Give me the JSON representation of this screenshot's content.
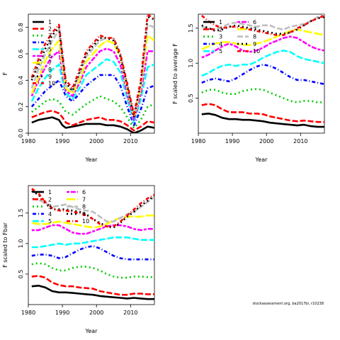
{
  "chart_data": [
    {
      "type": "line",
      "xlabel": "Year",
      "ylabel": "F",
      "xlim": [
        1980,
        2017
      ],
      "ylim": [
        0,
        0.9
      ],
      "xticks": [
        "1980",
        "1990",
        "2000",
        "2010"
      ],
      "yticks": [
        "0.0",
        "0.2",
        "0.4",
        "0.6",
        "0.8"
      ],
      "legend_position": "top-left",
      "x": [
        1981,
        1983,
        1985,
        1987,
        1989,
        1990,
        1991,
        1993,
        1995,
        1997,
        1999,
        2001,
        2003,
        2005,
        2007,
        2009,
        2011,
        2013,
        2015,
        2017
      ],
      "series": [
        {
          "name": "1",
          "color": "#000000",
          "values": [
            0.08,
            0.1,
            0.11,
            0.12,
            0.1,
            0.06,
            0.04,
            0.05,
            0.06,
            0.07,
            0.07,
            0.07,
            0.06,
            0.06,
            0.05,
            0.03,
            0.0,
            0.02,
            0.05,
            0.04
          ]
        },
        {
          "name": "2",
          "color": "#ff0000",
          "values": [
            0.12,
            0.14,
            0.16,
            0.17,
            0.15,
            0.12,
            0.08,
            0.06,
            0.08,
            0.1,
            0.11,
            0.12,
            0.1,
            0.1,
            0.09,
            0.06,
            0.02,
            0.05,
            0.09,
            0.08
          ]
        },
        {
          "name": "3",
          "color": "#00cc00",
          "values": [
            0.16,
            0.2,
            0.24,
            0.26,
            0.24,
            0.2,
            0.16,
            0.14,
            0.18,
            0.22,
            0.25,
            0.28,
            0.26,
            0.24,
            0.2,
            0.12,
            0.04,
            0.1,
            0.2,
            0.22
          ]
        },
        {
          "name": "4",
          "color": "#0000ff",
          "values": [
            0.2,
            0.26,
            0.32,
            0.36,
            0.4,
            0.34,
            0.28,
            0.24,
            0.3,
            0.36,
            0.4,
            0.44,
            0.44,
            0.44,
            0.36,
            0.2,
            0.06,
            0.18,
            0.34,
            0.36
          ]
        },
        {
          "name": "5",
          "color": "#00ffff",
          "values": [
            0.24,
            0.34,
            0.42,
            0.48,
            0.52,
            0.4,
            0.3,
            0.26,
            0.34,
            0.44,
            0.48,
            0.52,
            0.56,
            0.54,
            0.46,
            0.26,
            0.08,
            0.26,
            0.5,
            0.52
          ]
        },
        {
          "name": "6",
          "color": "#ff00ff",
          "values": [
            0.28,
            0.4,
            0.5,
            0.58,
            0.62,
            0.46,
            0.32,
            0.28,
            0.38,
            0.5,
            0.56,
            0.62,
            0.64,
            0.62,
            0.52,
            0.3,
            0.1,
            0.3,
            0.62,
            0.62
          ]
        },
        {
          "name": "7",
          "color": "#ffff00",
          "values": [
            0.3,
            0.42,
            0.55,
            0.64,
            0.7,
            0.5,
            0.34,
            0.3,
            0.4,
            0.54,
            0.6,
            0.66,
            0.7,
            0.68,
            0.58,
            0.34,
            0.12,
            0.34,
            0.74,
            0.7
          ]
        },
        {
          "name": "8",
          "color": "#bebebe",
          "values": [
            0.34,
            0.48,
            0.6,
            0.7,
            0.78,
            0.54,
            0.36,
            0.32,
            0.44,
            0.58,
            0.64,
            0.7,
            0.72,
            0.72,
            0.6,
            0.36,
            0.14,
            0.36,
            0.82,
            0.8
          ]
        },
        {
          "name": "9",
          "color": "#000000",
          "values": [
            0.4,
            0.52,
            0.64,
            0.74,
            0.8,
            0.58,
            0.38,
            0.32,
            0.46,
            0.6,
            0.66,
            0.72,
            0.72,
            0.7,
            0.58,
            0.36,
            0.12,
            0.38,
            0.88,
            0.86
          ]
        },
        {
          "name": "10",
          "color": "#ff0000",
          "values": [
            0.42,
            0.56,
            0.68,
            0.76,
            0.82,
            0.6,
            0.4,
            0.34,
            0.48,
            0.62,
            0.68,
            0.74,
            0.72,
            0.72,
            0.6,
            0.38,
            0.14,
            0.4,
            0.9,
            0.86
          ]
        }
      ]
    },
    {
      "type": "line",
      "xlabel": "Year",
      "ylabel": "F scaled to average F",
      "xlim": [
        1980,
        2017
      ],
      "ylim": [
        0,
        1.7
      ],
      "xticks": [
        "1980",
        "1990",
        "2000",
        "2010"
      ],
      "yticks": [
        "0.5",
        "1.0",
        "1.5"
      ],
      "legend_position": "top",
      "x": [
        1981,
        1983,
        1985,
        1987,
        1989,
        1991,
        1993,
        1995,
        1997,
        1999,
        2001,
        2003,
        2005,
        2007,
        2009,
        2011,
        2013,
        2015,
        2017
      ],
      "series": [
        {
          "name": "1",
          "color": "#000000",
          "values": [
            0.27,
            0.28,
            0.26,
            0.22,
            0.2,
            0.2,
            0.19,
            0.19,
            0.18,
            0.17,
            0.15,
            0.14,
            0.13,
            0.12,
            0.11,
            0.12,
            0.1,
            0.09,
            0.09
          ]
        },
        {
          "name": "2",
          "color": "#ff0000",
          "values": [
            0.4,
            0.42,
            0.4,
            0.34,
            0.3,
            0.3,
            0.3,
            0.28,
            0.28,
            0.27,
            0.24,
            0.22,
            0.2,
            0.18,
            0.17,
            0.18,
            0.17,
            0.16,
            0.16
          ]
        },
        {
          "name": "3",
          "color": "#00cc00",
          "values": [
            0.58,
            0.62,
            0.62,
            0.58,
            0.56,
            0.56,
            0.6,
            0.62,
            0.63,
            0.62,
            0.58,
            0.54,
            0.5,
            0.46,
            0.44,
            0.46,
            0.46,
            0.44,
            0.44
          ]
        },
        {
          "name": "4",
          "color": "#0000ff",
          "values": [
            0.72,
            0.76,
            0.78,
            0.76,
            0.74,
            0.78,
            0.84,
            0.9,
            0.95,
            0.98,
            0.96,
            0.92,
            0.86,
            0.8,
            0.76,
            0.76,
            0.74,
            0.72,
            0.7
          ]
        },
        {
          "name": "5",
          "color": "#00ffff",
          "values": [
            0.82,
            0.86,
            0.92,
            0.96,
            0.98,
            0.96,
            0.98,
            0.98,
            1.02,
            1.08,
            1.12,
            1.16,
            1.18,
            1.16,
            1.1,
            1.06,
            1.04,
            1.02,
            1.0
          ]
        },
        {
          "name": "6",
          "color": "#ff00ff",
          "values": [
            1.08,
            1.12,
            1.18,
            1.24,
            1.28,
            1.24,
            1.18,
            1.16,
            1.18,
            1.22,
            1.28,
            1.32,
            1.36,
            1.38,
            1.36,
            1.3,
            1.24,
            1.2,
            1.18
          ]
        },
        {
          "name": "7",
          "color": "#ffff00",
          "values": [
            1.2,
            1.24,
            1.28,
            1.3,
            1.3,
            1.28,
            1.26,
            1.26,
            1.28,
            1.3,
            1.34,
            1.38,
            1.42,
            1.46,
            1.48,
            1.46,
            1.44,
            1.42,
            1.4
          ]
        },
        {
          "name": "8",
          "color": "#bebebe",
          "values": [
            1.52,
            1.5,
            1.48,
            1.52,
            1.56,
            1.58,
            1.56,
            1.54,
            1.52,
            1.54,
            1.54,
            1.5,
            1.48,
            1.52,
            1.54,
            1.56,
            1.6,
            1.66,
            1.7
          ]
        },
        {
          "name": "9",
          "color": "#000000",
          "values": [
            1.54,
            1.5,
            1.46,
            1.48,
            1.52,
            1.54,
            1.52,
            1.5,
            1.48,
            1.46,
            1.44,
            1.42,
            1.42,
            1.44,
            1.48,
            1.54,
            1.6,
            1.64,
            1.66
          ]
        },
        {
          "name": "10",
          "color": "#ff0000",
          "values": [
            1.68,
            1.6,
            1.54,
            1.5,
            1.52,
            1.52,
            1.5,
            1.48,
            1.46,
            1.44,
            1.42,
            1.4,
            1.4,
            1.44,
            1.5,
            1.54,
            1.6,
            1.64,
            1.68
          ]
        }
      ]
    },
    {
      "type": "line",
      "xlabel": "Year",
      "ylabel": "F scaled to Fbar",
      "xlim": [
        1980,
        2017
      ],
      "ylim": [
        0,
        1.95
      ],
      "xticks": [
        "1980",
        "1990",
        "2000",
        "2010"
      ],
      "yticks": [
        "0.5",
        "1.0",
        "1.5"
      ],
      "legend_position": "top",
      "x": [
        1981,
        1983,
        1985,
        1987,
        1989,
        1991,
        1993,
        1995,
        1997,
        1999,
        2001,
        2003,
        2005,
        2007,
        2009,
        2011,
        2013,
        2015,
        2017
      ],
      "series": [
        {
          "name": "1",
          "color": "#000000",
          "values": [
            0.3,
            0.31,
            0.28,
            0.22,
            0.2,
            0.2,
            0.19,
            0.18,
            0.17,
            0.16,
            0.14,
            0.13,
            0.12,
            0.11,
            0.1,
            0.11,
            0.1,
            0.09,
            0.09
          ]
        },
        {
          "name": "2",
          "color": "#ff0000",
          "values": [
            0.46,
            0.47,
            0.44,
            0.36,
            0.32,
            0.3,
            0.3,
            0.28,
            0.27,
            0.26,
            0.22,
            0.2,
            0.18,
            0.16,
            0.16,
            0.18,
            0.18,
            0.17,
            0.17
          ]
        },
        {
          "name": "3",
          "color": "#00cc00",
          "values": [
            0.66,
            0.68,
            0.66,
            0.6,
            0.56,
            0.56,
            0.6,
            0.62,
            0.62,
            0.6,
            0.56,
            0.5,
            0.46,
            0.44,
            0.44,
            0.46,
            0.46,
            0.45,
            0.45
          ]
        },
        {
          "name": "4",
          "color": "#0000ff",
          "values": [
            0.8,
            0.82,
            0.82,
            0.8,
            0.76,
            0.78,
            0.84,
            0.9,
            0.94,
            0.96,
            0.92,
            0.86,
            0.8,
            0.76,
            0.74,
            0.74,
            0.74,
            0.74,
            0.74
          ]
        },
        {
          "name": "5",
          "color": "#00ffff",
          "values": [
            0.94,
            0.94,
            0.96,
            0.98,
            1.0,
            0.98,
            1.0,
            1.0,
            1.02,
            1.04,
            1.06,
            1.08,
            1.1,
            1.1,
            1.1,
            1.08,
            1.06,
            1.06,
            1.06
          ]
        },
        {
          "name": "6",
          "color": "#ff00ff",
          "values": [
            1.22,
            1.22,
            1.26,
            1.3,
            1.3,
            1.24,
            1.18,
            1.16,
            1.16,
            1.2,
            1.24,
            1.28,
            1.3,
            1.3,
            1.28,
            1.24,
            1.22,
            1.24,
            1.24
          ]
        },
        {
          "name": "7",
          "color": "#ffff00",
          "values": [
            1.34,
            1.32,
            1.32,
            1.34,
            1.36,
            1.34,
            1.32,
            1.3,
            1.28,
            1.26,
            1.28,
            1.32,
            1.38,
            1.42,
            1.44,
            1.44,
            1.44,
            1.46,
            1.46
          ]
        },
        {
          "name": "8",
          "color": "#bebebe",
          "values": [
            1.74,
            1.72,
            1.66,
            1.6,
            1.62,
            1.64,
            1.6,
            1.56,
            1.54,
            1.52,
            1.44,
            1.36,
            1.36,
            1.42,
            1.48,
            1.52,
            1.6,
            1.68,
            1.76
          ]
        },
        {
          "name": "9",
          "color": "#000000",
          "values": [
            1.86,
            1.8,
            1.66,
            1.56,
            1.56,
            1.56,
            1.54,
            1.52,
            1.48,
            1.4,
            1.34,
            1.28,
            1.26,
            1.34,
            1.44,
            1.52,
            1.62,
            1.7,
            1.78
          ]
        },
        {
          "name": "10",
          "color": "#ff0000",
          "values": [
            1.9,
            1.82,
            1.68,
            1.58,
            1.54,
            1.54,
            1.52,
            1.5,
            1.46,
            1.4,
            1.32,
            1.28,
            1.28,
            1.36,
            1.46,
            1.56,
            1.66,
            1.74,
            1.8
          ]
        }
      ]
    }
  ],
  "caption": "stockassessment.org, ba2017bi, r10238"
}
